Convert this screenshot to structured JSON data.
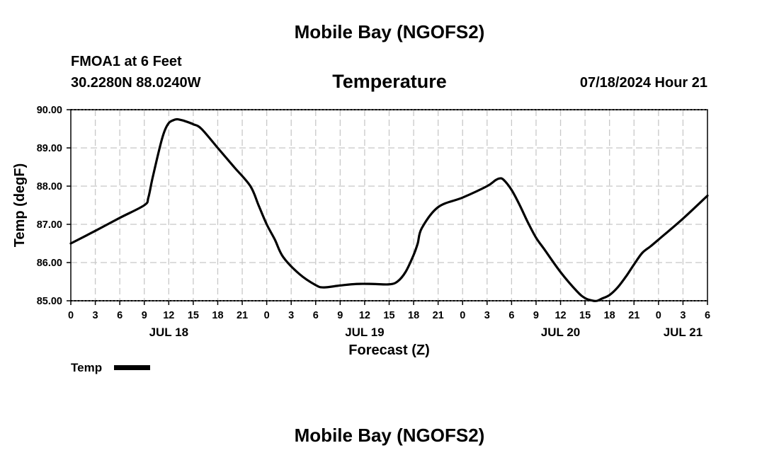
{
  "header": {
    "title": "Mobile Bay (NGOFS2)",
    "station": "FMOA1 at 6 Feet",
    "coords": "30.2280N  88.0240W",
    "variable": "Temperature",
    "datetime": "07/18/2024 Hour 21"
  },
  "footer": {
    "title": "Mobile Bay (NGOFS2)"
  },
  "legend": {
    "label": "Temp"
  },
  "chart_data": {
    "type": "line",
    "title": "Temperature",
    "xlabel": "Forecast (Z)",
    "ylabel": "Temp (degF)",
    "x_unit": "hours since JUL 18 00Z",
    "xlim": [
      0,
      78
    ],
    "ylim": [
      85,
      90
    ],
    "yticks": [
      "85.00",
      "86.00",
      "87.00",
      "88.00",
      "89.00",
      "90.00"
    ],
    "xtick_labels": [
      "0",
      "3",
      "6",
      "9",
      "12",
      "15",
      "18",
      "21",
      "0",
      "3",
      "6",
      "9",
      "12",
      "15",
      "18",
      "21",
      "0",
      "3",
      "6",
      "9",
      "12",
      "15",
      "18",
      "21",
      "0",
      "3",
      "6"
    ],
    "date_labels": [
      {
        "label": "JUL 18",
        "hour": 12
      },
      {
        "label": "JUL 19",
        "hour": 36
      },
      {
        "label": "JUL 20",
        "hour": 60
      },
      {
        "label": "JUL 21",
        "hour": 75
      }
    ],
    "grid": true,
    "series": [
      {
        "name": "Temp",
        "color": "#000000",
        "x": [
          0,
          3,
          6,
          9,
          9.5,
          10,
          11,
          11.5,
          12,
          12.5,
          13,
          13.5,
          14,
          15,
          16,
          18,
          20,
          22,
          23,
          24,
          25,
          26,
          28,
          30,
          31,
          33,
          35,
          37,
          39,
          40,
          41,
          42,
          42.5,
          43,
          45,
          48,
          51,
          52,
          52.5,
          53,
          54,
          55,
          56,
          57,
          58,
          60,
          62,
          63,
          64,
          64.5,
          65,
          66,
          67,
          68,
          69,
          70,
          71,
          72,
          75,
          78
        ],
        "values": [
          86.5,
          86.83,
          87.17,
          87.5,
          87.7,
          88.2,
          89.1,
          89.45,
          89.65,
          89.72,
          89.75,
          89.73,
          89.7,
          89.62,
          89.5,
          89.0,
          88.5,
          88.0,
          87.5,
          87.0,
          86.6,
          86.15,
          85.7,
          85.41,
          85.35,
          85.4,
          85.44,
          85.44,
          85.43,
          85.5,
          85.75,
          86.2,
          86.5,
          86.9,
          87.45,
          87.7,
          88.0,
          88.15,
          88.2,
          88.17,
          87.9,
          87.5,
          87.05,
          86.65,
          86.35,
          85.75,
          85.25,
          85.07,
          85.0,
          85.0,
          85.05,
          85.15,
          85.35,
          85.63,
          85.95,
          86.25,
          86.42,
          86.6,
          87.15,
          87.75
        ]
      }
    ]
  }
}
